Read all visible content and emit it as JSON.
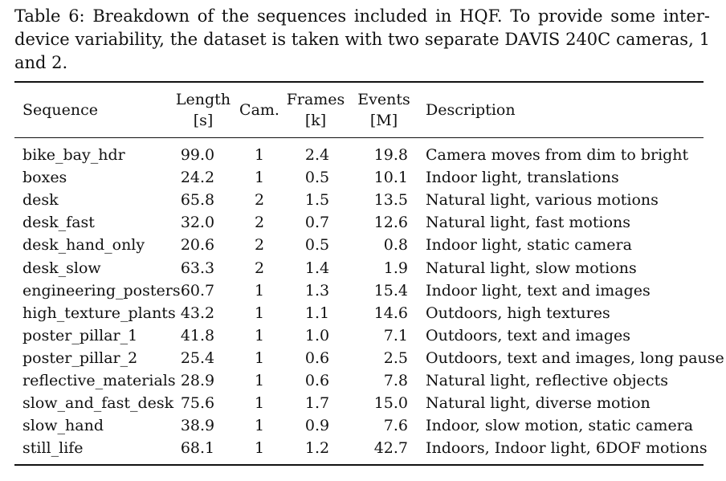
{
  "caption": "Table 6: Breakdown of the sequences included in HQF. To provide some inter-device variability, the dataset is taken with two separate DAVIS 240C cameras, 1 and 2.",
  "table": {
    "headers": {
      "sequence": "Sequence",
      "length_line1": "Length",
      "length_line2": "[s]",
      "cam": "Cam.",
      "frames_line1": "Frames",
      "frames_line2": "[k]",
      "events_line1": "Events",
      "events_line2": "[M]",
      "description": "Description"
    },
    "rows": [
      {
        "sequence": "bike_bay_hdr",
        "length": "99.0",
        "cam": "1",
        "frames": "2.4",
        "events": "19.8",
        "description": "Camera moves from dim to bright"
      },
      {
        "sequence": "boxes",
        "length": "24.2",
        "cam": "1",
        "frames": "0.5",
        "events": "10.1",
        "description": "Indoor light, translations"
      },
      {
        "sequence": "desk",
        "length": "65.8",
        "cam": "2",
        "frames": "1.5",
        "events": "13.5",
        "description": "Natural light, various motions"
      },
      {
        "sequence": "desk_fast",
        "length": "32.0",
        "cam": "2",
        "frames": "0.7",
        "events": "12.6",
        "description": "Natural light, fast motions"
      },
      {
        "sequence": "desk_hand_only",
        "length": "20.6",
        "cam": "2",
        "frames": "0.5",
        "events": "0.8",
        "description": "Indoor light, static camera"
      },
      {
        "sequence": "desk_slow",
        "length": "63.3",
        "cam": "2",
        "frames": "1.4",
        "events": "1.9",
        "description": "Natural light, slow motions"
      },
      {
        "sequence": "engineering_posters",
        "length": "60.7",
        "cam": "1",
        "frames": "1.3",
        "events": "15.4",
        "description": "Indoor light, text and images"
      },
      {
        "sequence": "high_texture_plants",
        "length": "43.2",
        "cam": "1",
        "frames": "1.1",
        "events": "14.6",
        "description": "Outdoors, high textures"
      },
      {
        "sequence": "poster_pillar_1",
        "length": "41.8",
        "cam": "1",
        "frames": "1.0",
        "events": "7.1",
        "description": "Outdoors, text and images"
      },
      {
        "sequence": "poster_pillar_2",
        "length": "25.4",
        "cam": "1",
        "frames": "0.6",
        "events": "2.5",
        "description": "Outdoors, text and images, long pause"
      },
      {
        "sequence": "reflective_materials",
        "length": "28.9",
        "cam": "1",
        "frames": "0.6",
        "events": "7.8",
        "description": "Natural light, reflective objects"
      },
      {
        "sequence": "slow_and_fast_desk",
        "length": "75.6",
        "cam": "1",
        "frames": "1.7",
        "events": "15.0",
        "description": "Natural light, diverse motion"
      },
      {
        "sequence": "slow_hand",
        "length": "38.9",
        "cam": "1",
        "frames": "0.9",
        "events": "7.6",
        "description": "Indoor, slow motion, static camera"
      },
      {
        "sequence": "still_life",
        "length": "68.1",
        "cam": "1",
        "frames": "1.2",
        "events": "42.7",
        "description": "Indoors, Indoor light, 6DOF motions"
      }
    ]
  }
}
